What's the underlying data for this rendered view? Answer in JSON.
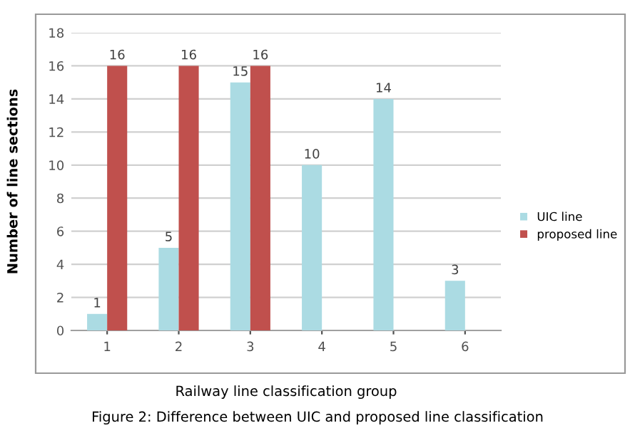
{
  "chart_data": {
    "type": "bar",
    "xlabel": "Railway line classification group",
    "ylabel": "Number of line sections",
    "annotations": [
      "Figure 2: Difference between UIC and proposed line classification"
    ],
    "categories": [
      "1",
      "2",
      "3",
      "4",
      "5",
      "6"
    ],
    "series": [
      {
        "name": "UIC line",
        "color": "#abdbe3",
        "values": [
          1,
          5,
          15,
          10,
          14,
          3
        ]
      },
      {
        "name": "proposed line",
        "color": "#c0504d",
        "values": [
          16,
          16,
          16,
          null,
          null,
          null
        ]
      }
    ],
    "ylim": [
      0,
      18
    ],
    "yticks": [
      0,
      2,
      4,
      6,
      8,
      10,
      12,
      14,
      16,
      18
    ],
    "grid": "y",
    "legend": "right",
    "data_labels": true
  }
}
